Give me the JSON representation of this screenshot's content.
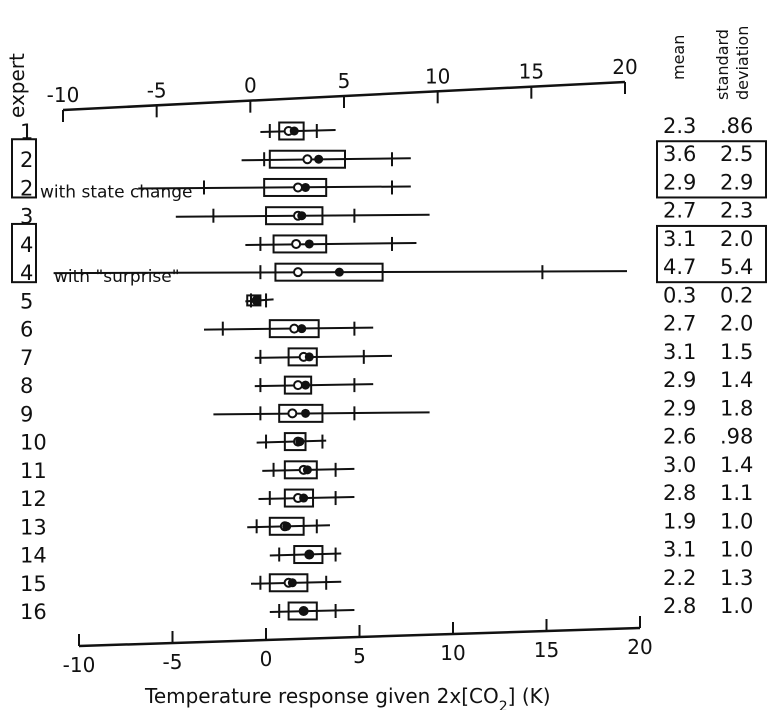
{
  "chart_data": {
    "type": "box",
    "title": "",
    "xlabel": "Temperature response given 2x[CO",
    "xlabel_subscript": "2",
    "xlabel_suffix": "] (K)",
    "ylabel": "expert",
    "xlim": [
      -10,
      20
    ],
    "xticks": [
      -10,
      -5,
      0,
      5,
      10,
      15,
      20
    ],
    "stat_headers": [
      "mean",
      "standard",
      "deviation"
    ],
    "rows": [
      {
        "expert": "1",
        "note": "",
        "boxed": false,
        "min": 0.5,
        "p5": 1.0,
        "q1": 1.5,
        "median": 2.0,
        "mean": 2.3,
        "q3": 2.8,
        "p95": 3.5,
        "max": 4.5,
        "sd": ".86"
      },
      {
        "expert": "2",
        "note": "",
        "boxed": true,
        "min": -0.5,
        "p5": 0.7,
        "q1": 1.0,
        "median": 3.0,
        "mean": 3.6,
        "q3": 5.0,
        "p95": 7.5,
        "max": 8.5,
        "sd": "2.5"
      },
      {
        "expert": "2",
        "note": "with state change",
        "boxed": true,
        "min": -6.0,
        "p5": -2.5,
        "q1": 0.7,
        "median": 2.5,
        "mean": 2.9,
        "q3": 4.0,
        "p95": 7.5,
        "max": 8.5,
        "sd": "2.9"
      },
      {
        "expert": "3",
        "note": "",
        "boxed": false,
        "min": -4.0,
        "p5": -2.0,
        "q1": 0.8,
        "median": 2.5,
        "mean": 2.7,
        "q3": 3.8,
        "p95": 5.5,
        "max": 9.5,
        "sd": "2.3"
      },
      {
        "expert": "4",
        "note": "",
        "boxed": true,
        "min": -0.3,
        "p5": 0.5,
        "q1": 1.2,
        "median": 2.4,
        "mean": 3.1,
        "q3": 4.0,
        "p95": 7.5,
        "max": 8.8,
        "sd": "2.0"
      },
      {
        "expert": "4",
        "note": "with \"surprise\"",
        "boxed": true,
        "min": -10.5,
        "p5": 0.5,
        "q1": 1.3,
        "median": 2.5,
        "mean": 4.7,
        "q3": 7.0,
        "p95": 15.5,
        "max": 20.0,
        "sd": "5.4"
      },
      {
        "expert": "5",
        "note": "",
        "boxed": false,
        "min": -0.3,
        "p5": 0.0,
        "q1": -0.2,
        "median": 0.3,
        "mean": 0.3,
        "q3": 0.5,
        "p95": 0.8,
        "max": 1.2,
        "sd": "0.2"
      },
      {
        "expert": "6",
        "note": "",
        "boxed": false,
        "min": -2.5,
        "p5": -1.5,
        "q1": 1.0,
        "median": 2.3,
        "mean": 2.7,
        "q3": 3.6,
        "p95": 5.5,
        "max": 6.5,
        "sd": "2.0"
      },
      {
        "expert": "7",
        "note": "",
        "boxed": false,
        "min": 0.2,
        "p5": 0.5,
        "q1": 2.0,
        "median": 2.8,
        "mean": 3.1,
        "q3": 3.5,
        "p95": 6.0,
        "max": 7.5,
        "sd": "1.5"
      },
      {
        "expert": "8",
        "note": "",
        "boxed": false,
        "min": 0.2,
        "p5": 0.5,
        "q1": 1.8,
        "median": 2.5,
        "mean": 2.9,
        "q3": 3.2,
        "p95": 5.5,
        "max": 6.5,
        "sd": "1.4"
      },
      {
        "expert": "9",
        "note": "",
        "boxed": false,
        "min": -2.0,
        "p5": 0.5,
        "q1": 1.5,
        "median": 2.2,
        "mean": 2.9,
        "q3": 3.8,
        "p95": 5.5,
        "max": 9.5,
        "sd": "1.8"
      },
      {
        "expert": "10",
        "note": "",
        "boxed": false,
        "min": 0.3,
        "p5": 0.8,
        "q1": 1.8,
        "median": 2.5,
        "mean": 2.6,
        "q3": 2.9,
        "p95": 3.8,
        "max": 4.0,
        "sd": ".98"
      },
      {
        "expert": "11",
        "note": "",
        "boxed": false,
        "min": 0.6,
        "p5": 1.2,
        "q1": 1.8,
        "median": 2.8,
        "mean": 3.0,
        "q3": 3.5,
        "p95": 4.5,
        "max": 5.5,
        "sd": "1.4"
      },
      {
        "expert": "12",
        "note": "",
        "boxed": false,
        "min": 0.4,
        "p5": 1.0,
        "q1": 1.8,
        "median": 2.5,
        "mean": 2.8,
        "q3": 3.3,
        "p95": 4.5,
        "max": 5.5,
        "sd": "1.1"
      },
      {
        "expert": "13",
        "note": "",
        "boxed": false,
        "min": -0.2,
        "p5": 0.3,
        "q1": 1.0,
        "median": 1.8,
        "mean": 1.9,
        "q3": 2.8,
        "p95": 3.5,
        "max": 4.2,
        "sd": "1.0"
      },
      {
        "expert": "14",
        "note": "",
        "boxed": false,
        "min": 1.0,
        "p5": 1.5,
        "q1": 2.3,
        "median": 3.1,
        "mean": 3.1,
        "q3": 3.8,
        "p95": 4.5,
        "max": 4.8,
        "sd": "1.0"
      },
      {
        "expert": "15",
        "note": "",
        "boxed": false,
        "min": 0.0,
        "p5": 0.5,
        "q1": 1.0,
        "median": 2.0,
        "mean": 2.2,
        "q3": 3.0,
        "p95": 4.0,
        "max": 4.8,
        "sd": "1.3"
      },
      {
        "expert": "16",
        "note": "",
        "boxed": false,
        "min": 1.0,
        "p5": 1.5,
        "q1": 2.0,
        "median": 2.8,
        "mean": 2.8,
        "q3": 3.5,
        "p95": 4.5,
        "max": 5.5,
        "sd": "1.0"
      }
    ]
  }
}
